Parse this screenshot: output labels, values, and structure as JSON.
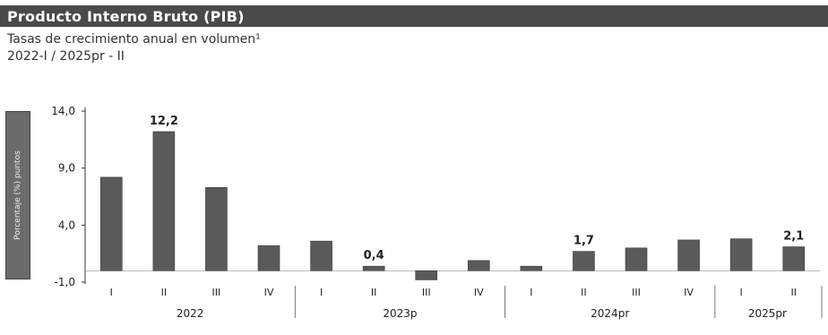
{
  "header": {
    "title": "Producto Interno Bruto (PIB)",
    "subtitle": "Tasas de crecimiento anual en volumen¹",
    "period": "2022-I / 2025pr - II"
  },
  "y_axis_badge": "Porcentaje (%) puntos",
  "colors": {
    "bar": "#5a5a5a",
    "title_bar": "#4a4a4a",
    "axis": "#333333"
  },
  "chart_data": {
    "type": "bar",
    "title": "Producto Interno Bruto (PIB)",
    "subtitle": "Tasas de crecimiento anual en volumen¹",
    "ylim": [
      -1.0,
      14.0
    ],
    "yticks": [
      -1.0,
      4.0,
      9.0,
      14.0
    ],
    "ytick_labels": [
      "-1,0",
      "4,0",
      "9,0",
      "14,0"
    ],
    "categories": [
      "I",
      "II",
      "III",
      "IV",
      "I",
      "II",
      "III",
      "IV",
      "I",
      "II",
      "III",
      "IV",
      "I",
      "II"
    ],
    "values": [
      8.2,
      12.2,
      7.3,
      2.2,
      2.6,
      0.4,
      -0.8,
      0.9,
      0.4,
      1.7,
      2.0,
      2.7,
      2.8,
      2.1
    ],
    "data_labels": [
      {
        "index": 1,
        "text": "12,2"
      },
      {
        "index": 5,
        "text": "0,4"
      },
      {
        "index": 9,
        "text": "1,7"
      },
      {
        "index": 13,
        "text": "2,1"
      }
    ],
    "groups": [
      {
        "label": "2022",
        "start": 0,
        "end": 3
      },
      {
        "label": "2023p",
        "start": 4,
        "end": 7
      },
      {
        "label": "2024pr",
        "start": 8,
        "end": 11
      },
      {
        "label": "2025pr",
        "start": 12,
        "end": 13
      }
    ]
  }
}
